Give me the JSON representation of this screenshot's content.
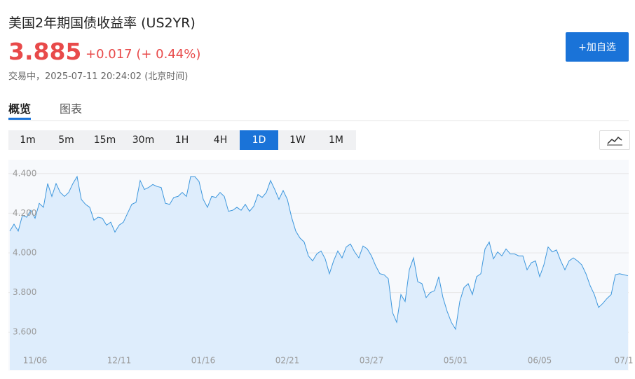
{
  "header": {
    "title": "美国2年期国债收益率 (US2YR)",
    "price": "3.885",
    "change": "+0.017 (+ 0.44%)",
    "timestamp": "交易中，2025-07-11 20:24:02 (北京时间)",
    "watch_button": "+加自选"
  },
  "tabs": [
    "概览",
    "图表"
  ],
  "intervals": [
    "1m",
    "5m",
    "15m",
    "30m",
    "1H",
    "4H",
    "1D",
    "1W",
    "1M"
  ],
  "selected_interval": "1D",
  "chart_data": {
    "type": "line",
    "color": "#3d97dd",
    "fill": "#deedfc",
    "categories": [
      null,
      null,
      null,
      null,
      null,
      null,
      "11/06",
      null,
      null,
      null,
      null,
      null,
      null,
      null,
      null,
      null,
      null,
      null,
      null,
      null,
      null,
      null,
      null,
      null,
      null,
      null,
      "12/11",
      null,
      null,
      null,
      null,
      null,
      null,
      null,
      null,
      null,
      null,
      null,
      null,
      null,
      null,
      null,
      null,
      null,
      null,
      null,
      "01/16",
      null,
      null,
      null,
      null,
      null,
      null,
      null,
      null,
      null,
      null,
      null,
      null,
      null,
      null,
      null,
      null,
      null,
      null,
      null,
      "02/21",
      null,
      null,
      null,
      null,
      null,
      null,
      null,
      null,
      null,
      null,
      null,
      null,
      null,
      null,
      null,
      null,
      null,
      null,
      null,
      "03/27",
      null,
      null,
      null,
      null,
      null,
      null,
      null,
      null,
      null,
      null,
      null,
      null,
      null,
      null,
      null,
      null,
      null,
      null,
      null,
      "05/01",
      null,
      null,
      null,
      null,
      null,
      null,
      null,
      null,
      null,
      null,
      null,
      null,
      null,
      null,
      null,
      null,
      null,
      null,
      null,
      "06/05",
      null,
      null,
      null,
      null,
      null,
      null,
      null,
      null,
      null,
      null,
      null,
      null,
      null,
      null,
      null,
      null,
      null,
      null,
      null,
      "07/1",
      null
    ],
    "values": [
      4.11,
      4.145,
      4.11,
      4.19,
      4.18,
      4.215,
      4.175,
      4.25,
      4.23,
      4.35,
      4.285,
      4.35,
      4.305,
      4.285,
      4.305,
      4.35,
      4.385,
      4.27,
      4.245,
      4.23,
      4.165,
      4.18,
      4.175,
      4.14,
      4.155,
      4.105,
      4.14,
      4.155,
      4.2,
      4.245,
      4.255,
      4.365,
      4.32,
      4.33,
      4.345,
      4.335,
      4.33,
      4.25,
      4.245,
      4.28,
      4.285,
      4.305,
      4.285,
      4.385,
      4.385,
      4.36,
      4.27,
      4.23,
      4.285,
      4.28,
      4.305,
      4.285,
      4.21,
      4.215,
      4.23,
      4.215,
      4.245,
      4.21,
      4.235,
      4.295,
      4.28,
      4.305,
      4.365,
      4.32,
      4.27,
      4.315,
      4.27,
      4.18,
      4.11,
      4.075,
      4.055,
      3.985,
      3.96,
      3.995,
      4.01,
      3.97,
      3.895,
      3.96,
      4.01,
      3.975,
      4.03,
      4.045,
      4.005,
      3.975,
      4.035,
      4.02,
      3.985,
      3.935,
      3.895,
      3.89,
      3.87,
      3.7,
      3.65,
      3.79,
      3.755,
      3.915,
      3.975,
      3.855,
      3.845,
      3.775,
      3.8,
      3.81,
      3.88,
      3.775,
      3.705,
      3.65,
      3.615,
      3.755,
      3.825,
      3.845,
      3.79,
      3.88,
      3.895,
      4.02,
      4.055,
      3.97,
      4.005,
      3.985,
      4.02,
      3.995,
      3.995,
      3.985,
      3.985,
      3.915,
      3.95,
      3.96,
      3.88,
      3.94,
      4.03,
      4.005,
      4.015,
      3.96,
      3.915,
      3.96,
      3.975,
      3.96,
      3.94,
      3.895,
      3.835,
      3.79,
      3.725,
      3.745,
      3.77,
      3.79,
      3.89,
      3.895,
      3.89,
      3.885
    ],
    "ylim": [
      3.41,
      4.47
    ],
    "yticks": [
      {
        "value": 3.6,
        "label": "3.600"
      },
      {
        "value": 3.8,
        "label": "3.800"
      },
      {
        "value": 4.0,
        "label": "4.000"
      },
      {
        "value": 4.2,
        "label": "4.200"
      },
      {
        "value": 4.4,
        "label": "4.400"
      }
    ],
    "grid": true
  }
}
